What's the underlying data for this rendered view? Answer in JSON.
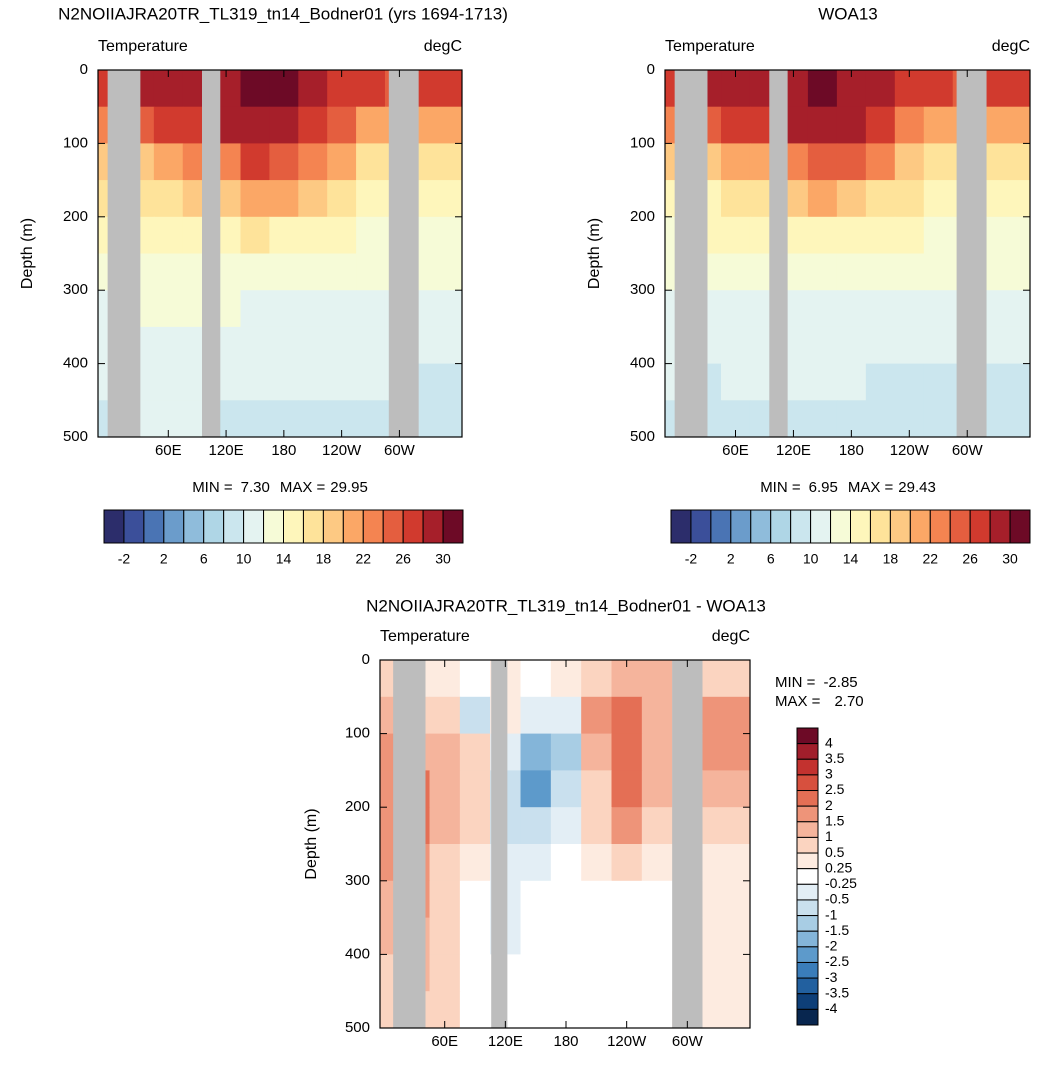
{
  "panels": [
    {
      "title": "N2NOIIAJRA20TR_TL319_tn14_Bodner01 (yrs 1694-1713)",
      "subtitle_left": "Temperature",
      "subtitle_right": "degC",
      "y_label": "Depth (m)",
      "xlim": [
        -13,
        365
      ],
      "ylim": [
        0,
        500
      ],
      "y_inverted": true,
      "xticks": [
        {
          "value": 60,
          "label": "60E"
        },
        {
          "value": 120,
          "label": "120E"
        },
        180,
        {
          "value": 240,
          "label": "120W"
        },
        {
          "value": 300,
          "label": "60W"
        }
      ],
      "yticks": [
        0,
        100,
        200,
        300,
        400,
        500
      ],
      "min_label": "MIN =",
      "min": {
        "value": 7.3,
        "label": "7.30"
      },
      "max_label": "MAX =",
      "max": 29.95,
      "land_color": "#bdbdbd",
      "land": [
        [
          -3,
          31
        ],
        [
          95,
          114
        ],
        [
          289,
          320
        ]
      ],
      "field_lon": [
        0,
        30,
        60,
        90,
        120,
        150,
        180,
        210,
        240,
        270,
        300,
        330
      ],
      "field_depth": [
        25,
        75,
        125,
        175,
        225,
        275,
        325,
        375,
        425,
        475
      ],
      "field": [
        [
          27,
          28,
          29,
          29,
          29,
          30,
          30,
          29,
          27,
          26,
          25,
          27
        ],
        [
          22,
          24,
          26,
          27,
          28,
          29,
          29,
          27,
          24,
          21,
          20,
          21
        ],
        [
          18,
          19,
          20,
          22,
          23,
          26,
          25,
          23,
          20,
          16,
          16,
          17
        ],
        [
          16,
          16,
          17,
          18,
          18,
          21,
          20,
          18,
          16,
          14,
          14,
          15
        ],
        [
          14,
          15,
          15,
          15,
          15,
          16,
          15,
          15,
          14,
          13,
          13,
          13
        ],
        [
          13,
          13,
          13,
          13,
          13,
          13,
          13,
          13,
          13,
          12,
          12,
          12
        ],
        [
          11,
          12,
          12,
          12,
          12,
          11,
          11,
          11,
          11,
          11,
          11,
          11
        ],
        [
          10,
          11,
          11,
          11,
          11,
          11,
          11,
          10,
          10,
          10,
          10,
          10
        ],
        [
          10,
          10,
          10,
          10,
          10,
          10,
          10,
          10,
          10,
          10,
          10,
          9
        ],
        [
          9,
          10,
          10,
          10,
          9,
          9,
          9,
          9,
          9,
          9,
          9,
          8
        ]
      ],
      "colorbar": {
        "orientation": "horizontal",
        "label_stride": 2,
        "levels": [
          -2,
          0,
          2,
          4,
          6,
          8,
          10,
          12,
          14,
          16,
          18,
          20,
          22,
          24,
          26,
          28,
          30
        ],
        "colors": [
          "#2c2d6b",
          "#3b4f9a",
          "#4a74b4",
          "#6b9ccb",
          "#8fbcdb",
          "#afd6e6",
          "#cbe6ee",
          "#e4f3f1",
          "#f6fbd7",
          "#fef6bb",
          "#fee39a",
          "#fdc983",
          "#fba766",
          "#f48451",
          "#e45e3f",
          "#d13a2e",
          "#a61f2a",
          "#6d0a26"
        ]
      }
    },
    {
      "title": "WOA13",
      "subtitle_left": "Temperature",
      "subtitle_right": "degC",
      "y_label": "Depth (m)",
      "xlim": [
        -13,
        365
      ],
      "ylim": [
        0,
        500
      ],
      "y_inverted": true,
      "xticks": [
        {
          "value": 60,
          "label": "60E"
        },
        {
          "value": 120,
          "label": "120E"
        },
        180,
        {
          "value": 240,
          "label": "120W"
        },
        {
          "value": 300,
          "label": "60W"
        }
      ],
      "yticks": [
        0,
        100,
        200,
        300,
        400,
        500
      ],
      "min_label": "MIN =",
      "min": 6.95,
      "max_label": "MAX =",
      "max": 29.43,
      "land_color": "#bdbdbd",
      "land": [
        [
          -3,
          31
        ],
        [
          95,
          114
        ],
        [
          289,
          320
        ]
      ],
      "field_lon": [
        0,
        30,
        60,
        90,
        120,
        150,
        180,
        210,
        240,
        270,
        300,
        330
      ],
      "field_depth": [
        25,
        75,
        125,
        175,
        225,
        275,
        325,
        375,
        425,
        475
      ],
      "field": [
        [
          27,
          28,
          29,
          29,
          29,
          30,
          29,
          29,
          27,
          26,
          25,
          27
        ],
        [
          22,
          24,
          26,
          27,
          28,
          29,
          28,
          26,
          23,
          20,
          20,
          21
        ],
        [
          18,
          18,
          20,
          21,
          23,
          25,
          24,
          22,
          19,
          16,
          16,
          17
        ],
        [
          15,
          15,
          16,
          17,
          18,
          20,
          19,
          17,
          16,
          14,
          14,
          15
        ],
        [
          13,
          14,
          14,
          14,
          15,
          15,
          15,
          15,
          14,
          13,
          13,
          13
        ],
        [
          12,
          12,
          13,
          13,
          13,
          12,
          12,
          12,
          12,
          12,
          12,
          12
        ],
        [
          11,
          11,
          11,
          11,
          11,
          11,
          11,
          11,
          10,
          10,
          10,
          10
        ],
        [
          10,
          10,
          10,
          10,
          10,
          10,
          10,
          10,
          10,
          10,
          10,
          10
        ],
        [
          10,
          9,
          10,
          10,
          10,
          10,
          10,
          9,
          9,
          9,
          9,
          9
        ],
        [
          9,
          9,
          9,
          9,
          9,
          9,
          9,
          8,
          8,
          8,
          8,
          8
        ]
      ],
      "colorbar": {
        "orientation": "horizontal",
        "label_stride": 2,
        "levels": [
          -2,
          0,
          2,
          4,
          6,
          8,
          10,
          12,
          14,
          16,
          18,
          20,
          22,
          24,
          26,
          28,
          30
        ],
        "colors": [
          "#2c2d6b",
          "#3b4f9a",
          "#4a74b4",
          "#6b9ccb",
          "#8fbcdb",
          "#afd6e6",
          "#cbe6ee",
          "#e4f3f1",
          "#f6fbd7",
          "#fef6bb",
          "#fee39a",
          "#fdc983",
          "#fba766",
          "#f48451",
          "#e45e3f",
          "#d13a2e",
          "#a61f2a",
          "#6d0a26"
        ]
      }
    },
    {
      "title": "N2NOIIAJRA20TR_TL319_tn14_Bodner01 - WOA13",
      "subtitle_left": "Temperature",
      "subtitle_right": "degC",
      "y_label": "Depth (m)",
      "xlim": [
        -4,
        362
      ],
      "ylim": [
        0,
        500
      ],
      "y_inverted": true,
      "xticks": [
        {
          "value": 60,
          "label": "60E"
        },
        {
          "value": 120,
          "label": "120E"
        },
        180,
        {
          "value": 240,
          "label": "120W"
        },
        {
          "value": 300,
          "label": "60W"
        }
      ],
      "yticks": [
        0,
        100,
        200,
        300,
        400,
        500
      ],
      "min_label": "MIN =",
      "min": -2.85,
      "max_label": "MAX =",
      "max": {
        "value": 2.7,
        "label": "2.70"
      },
      "land_color": "#bdbdbd",
      "land": [
        [
          9,
          41
        ],
        [
          106,
          122
        ],
        [
          285,
          315
        ]
      ],
      "field_lon": [
        0,
        30,
        60,
        90,
        120,
        150,
        180,
        210,
        240,
        270,
        300,
        330
      ],
      "field_depth": [
        25,
        75,
        125,
        175,
        225,
        275,
        325,
        375,
        425,
        475
      ],
      "field": [
        [
          0.6,
          0.4,
          0.3,
          0.2,
          0.4,
          0.2,
          0.3,
          0.6,
          1.2,
          1.0,
          0.5,
          0.6
        ],
        [
          1.2,
          0.8,
          0.6,
          -0.8,
          0.3,
          -0.4,
          -0.3,
          1.5,
          2.0,
          1.2,
          0.8,
          1.8
        ],
        [
          1.5,
          1.0,
          1.2,
          0.8,
          -0.5,
          -2.0,
          -1.5,
          1.0,
          2.2,
          1.2,
          0.8,
          1.5
        ],
        [
          1.8,
          2.0,
          1.2,
          0.6,
          -0.8,
          -2.2,
          -1.0,
          0.8,
          2.0,
          1.0,
          0.6,
          1.0
        ],
        [
          1.8,
          2.0,
          1.0,
          0.5,
          -0.6,
          -1.0,
          -0.3,
          0.6,
          1.5,
          0.8,
          0.5,
          0.6
        ],
        [
          1.5,
          1.8,
          0.8,
          0.3,
          -0.5,
          -0.4,
          0.1,
          0.3,
          0.5,
          0.4,
          0.3,
          0.4
        ],
        [
          1.2,
          1.5,
          0.8,
          0.2,
          -0.5,
          0.0,
          0.0,
          0.1,
          0.1,
          0.1,
          0.1,
          0.3
        ],
        [
          1.0,
          1.2,
          0.7,
          0.1,
          -0.3,
          0.0,
          0.0,
          0.0,
          0.0,
          0.0,
          0.1,
          0.3
        ],
        [
          0.8,
          1.0,
          0.6,
          0.1,
          -0.2,
          0.0,
          0.0,
          0.0,
          0.0,
          0.1,
          0.2,
          0.3
        ],
        [
          0.7,
          0.8,
          0.5,
          0.1,
          -0.1,
          0.0,
          0.0,
          0.0,
          0.1,
          0.2,
          0.3,
          0.3
        ]
      ],
      "colorbar": {
        "orientation": "vertical",
        "label_stride": 1,
        "levels": [
          4,
          3.5,
          3,
          2.5,
          2,
          1.5,
          1,
          0.5,
          0.25,
          -0.25,
          -0.5,
          -1,
          -1.5,
          -2,
          -2.5,
          -3,
          -3.5,
          -4
        ],
        "colors": [
          "#6d0a26",
          "#a11e2b",
          "#c3322f",
          "#d7503e",
          "#e46f55",
          "#ee9479",
          "#f5b49c",
          "#fbd4c0",
          "#fdebe0",
          "#ffffff",
          "#e3eef5",
          "#c9e0ee",
          "#a8cde4",
          "#84b5d9",
          "#5d9acb",
          "#3a7dba",
          "#22609f",
          "#0e3f78",
          "#08264f"
        ]
      }
    }
  ]
}
